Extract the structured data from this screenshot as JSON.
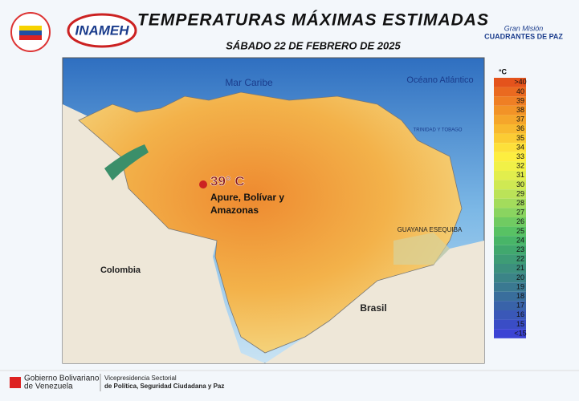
{
  "header": {
    "title": "TEMPERATURAS MÁXIMAS ESTIMADAS",
    "date": "SÁBADO 22 DE FEBRERO DE 2025",
    "logo_left": "INAMEH",
    "logo_right_top": "Gran Misión",
    "logo_right_bottom": "CUADRANTES DE PAZ"
  },
  "map": {
    "labels": {
      "sea": "Mar Caribe",
      "ocean": "Océano Atlántico",
      "trinidad": "TRINIDAD Y TOBAGO",
      "colombia": "Colombia",
      "brasil": "Brasil",
      "esequiba": "GUAYANA ESEQUIBA"
    },
    "highlight": {
      "value": "39° C",
      "region": "Apure, Bolívar y Amazonas"
    }
  },
  "legend": {
    "unit": "°C",
    "entries": [
      {
        "label": ">40",
        "color": "#e4531c"
      },
      {
        "label": "40",
        "color": "#ea6a20"
      },
      {
        "label": "39",
        "color": "#ef7f24"
      },
      {
        "label": "38",
        "color": "#f29327"
      },
      {
        "label": "37",
        "color": "#f5a62b"
      },
      {
        "label": "36",
        "color": "#f8b92f"
      },
      {
        "label": "35",
        "color": "#fbcc34"
      },
      {
        "label": "34",
        "color": "#fde03a"
      },
      {
        "label": "33",
        "color": "#fdee40"
      },
      {
        "label": "32",
        "color": "#f1f147"
      },
      {
        "label": "31",
        "color": "#e2ee4d"
      },
      {
        "label": "30",
        "color": "#cfe953"
      },
      {
        "label": "29",
        "color": "#bbe358"
      },
      {
        "label": "28",
        "color": "#a3dc5c"
      },
      {
        "label": "27",
        "color": "#8ad460"
      },
      {
        "label": "26",
        "color": "#70cb62"
      },
      {
        "label": "25",
        "color": "#58c264"
      },
      {
        "label": "24",
        "color": "#48b568"
      },
      {
        "label": "23",
        "color": "#41a86e"
      },
      {
        "label": "22",
        "color": "#3e9c76"
      },
      {
        "label": "21",
        "color": "#3c907e"
      },
      {
        "label": "20",
        "color": "#3b8487"
      },
      {
        "label": "19",
        "color": "#3a7991"
      },
      {
        "label": "18",
        "color": "#396e9c"
      },
      {
        "label": "17",
        "color": "#3963a9"
      },
      {
        "label": "16",
        "color": "#3a58b8"
      },
      {
        "label": "15",
        "color": "#3a4dc6"
      },
      {
        "label": "<15",
        "color": "#3b43d4"
      }
    ]
  },
  "footer": {
    "gov_top": "Gobierno Bolivariano",
    "gov_bottom": "de Venezuela",
    "vp_top": "Vicepresidencia Sectorial",
    "vp_bottom": "de Política, Seguridad Ciudadana y Paz"
  }
}
